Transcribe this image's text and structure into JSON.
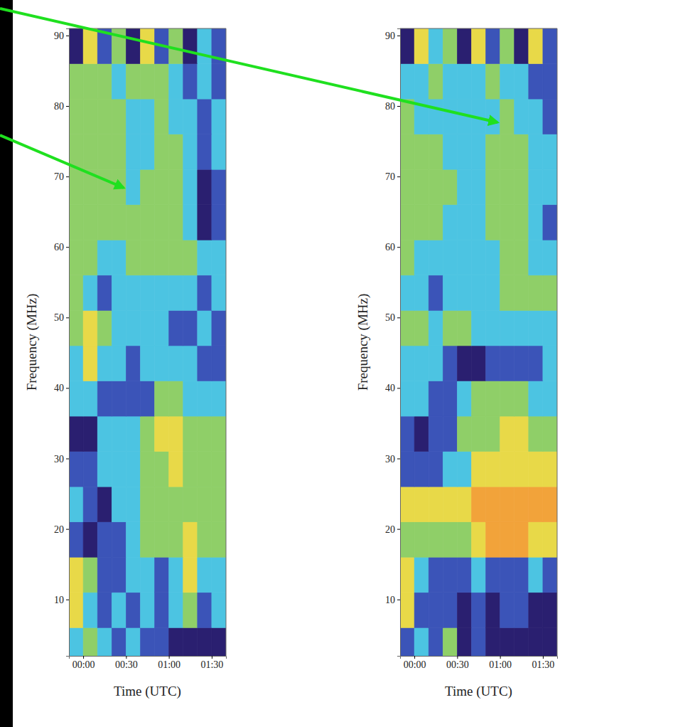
{
  "chart_data": [
    {
      "type": "heatmap",
      "xlabel": "Time (UTC)",
      "ylabel": "Frequency (MHz)",
      "xlim": [
        -10,
        100
      ],
      "ylim": [
        2,
        91
      ],
      "xticks": [
        {
          "value": 0,
          "label": "00:00"
        },
        {
          "value": 30,
          "label": "00:30"
        },
        {
          "value": 60,
          "label": "01:00"
        },
        {
          "value": 90,
          "label": "01:30"
        }
      ],
      "yticks": [
        10,
        20,
        30,
        40,
        50,
        60,
        70,
        80,
        90
      ],
      "x": [
        -10,
        0,
        10,
        20,
        30,
        40,
        50,
        60,
        70,
        80,
        90,
        100
      ],
      "y": [
        2,
        6,
        11,
        16,
        21,
        26,
        31,
        36,
        41,
        46,
        51,
        56,
        61,
        66,
        71,
        76,
        81,
        86,
        91
      ],
      "zlim": [
        0,
        5
      ],
      "colors": [
        "#2a1f70",
        "#3b54b8",
        "#4cc4e2",
        "#8fcf68",
        "#e8d948",
        "#f2a33a"
      ],
      "z": [
        [
          2,
          3,
          2,
          1,
          2,
          1,
          1,
          0,
          0,
          0,
          0
        ],
        [
          4,
          2,
          1,
          2,
          1,
          2,
          1,
          2,
          3,
          1,
          2
        ],
        [
          4,
          3,
          1,
          1,
          2,
          2,
          1,
          2,
          4,
          2,
          2
        ],
        [
          1,
          0,
          1,
          1,
          2,
          3,
          3,
          3,
          4,
          3,
          3
        ],
        [
          2,
          1,
          0,
          2,
          2,
          3,
          3,
          3,
          3,
          3,
          3
        ],
        [
          1,
          1,
          2,
          2,
          2,
          3,
          3,
          4,
          3,
          3,
          3
        ],
        [
          0,
          0,
          2,
          2,
          2,
          3,
          4,
          4,
          3,
          3,
          3
        ],
        [
          2,
          2,
          1,
          1,
          1,
          1,
          3,
          3,
          2,
          2,
          2
        ],
        [
          2,
          4,
          2,
          2,
          1,
          2,
          2,
          2,
          2,
          1,
          1
        ],
        [
          3,
          4,
          3,
          2,
          2,
          2,
          2,
          1,
          1,
          2,
          1
        ],
        [
          3,
          2,
          1,
          2,
          2,
          2,
          2,
          2,
          2,
          1,
          2
        ],
        [
          3,
          3,
          2,
          2,
          3,
          3,
          3,
          3,
          3,
          2,
          2
        ],
        [
          3,
          3,
          3,
          3,
          3,
          3,
          3,
          3,
          2,
          0,
          1
        ],
        [
          3,
          3,
          3,
          3,
          2,
          3,
          3,
          3,
          2,
          0,
          1
        ],
        [
          3,
          3,
          3,
          3,
          2,
          2,
          3,
          3,
          2,
          1,
          2
        ],
        [
          3,
          3,
          3,
          3,
          2,
          2,
          3,
          2,
          2,
          1,
          2
        ],
        [
          3,
          3,
          3,
          2,
          3,
          3,
          3,
          2,
          1,
          2,
          1
        ],
        [
          0,
          4,
          1,
          3,
          0,
          4,
          1,
          3,
          0,
          2,
          1
        ]
      ]
    },
    {
      "type": "heatmap",
      "xlabel": "Time (UTC)",
      "ylabel": "Frequency (MHz)",
      "xlim": [
        -10,
        100
      ],
      "ylim": [
        2,
        91
      ],
      "xticks": [
        {
          "value": 0,
          "label": "00:00"
        },
        {
          "value": 30,
          "label": "00:30"
        },
        {
          "value": 60,
          "label": "01:00"
        },
        {
          "value": 90,
          "label": "01:30"
        }
      ],
      "yticks": [
        10,
        20,
        30,
        40,
        50,
        60,
        70,
        80,
        90
      ],
      "x": [
        -10,
        0,
        10,
        20,
        30,
        40,
        50,
        60,
        70,
        80,
        90,
        100
      ],
      "y": [
        2,
        6,
        11,
        16,
        21,
        26,
        31,
        36,
        41,
        46,
        51,
        56,
        61,
        66,
        71,
        76,
        81,
        86,
        91
      ],
      "zlim": [
        0,
        5
      ],
      "colors": [
        "#2a1f70",
        "#3b54b8",
        "#4cc4e2",
        "#8fcf68",
        "#e8d948",
        "#f2a33a"
      ],
      "z": [
        [
          1,
          2,
          1,
          3,
          0,
          1,
          0,
          0,
          0,
          0,
          0
        ],
        [
          4,
          1,
          1,
          1,
          0,
          1,
          0,
          1,
          1,
          0,
          0
        ],
        [
          4,
          2,
          1,
          1,
          1,
          2,
          1,
          1,
          1,
          2,
          1
        ],
        [
          3,
          3,
          3,
          3,
          3,
          4,
          5,
          5,
          5,
          4,
          4
        ],
        [
          4,
          4,
          4,
          4,
          4,
          5,
          5,
          5,
          5,
          5,
          5
        ],
        [
          1,
          1,
          1,
          2,
          2,
          4,
          4,
          4,
          4,
          4,
          4
        ],
        [
          1,
          0,
          1,
          1,
          3,
          3,
          3,
          4,
          4,
          3,
          3
        ],
        [
          2,
          2,
          1,
          1,
          2,
          3,
          3,
          3,
          3,
          2,
          2
        ],
        [
          2,
          2,
          2,
          1,
          0,
          0,
          1,
          1,
          1,
          1,
          2
        ],
        [
          3,
          3,
          2,
          3,
          3,
          2,
          2,
          2,
          2,
          2,
          2
        ],
        [
          2,
          2,
          1,
          2,
          2,
          2,
          2,
          3,
          3,
          3,
          3
        ],
        [
          3,
          2,
          2,
          2,
          2,
          2,
          2,
          3,
          3,
          2,
          2
        ],
        [
          3,
          3,
          3,
          2,
          2,
          2,
          3,
          3,
          3,
          2,
          1
        ],
        [
          3,
          3,
          3,
          3,
          2,
          2,
          3,
          3,
          3,
          2,
          2
        ],
        [
          3,
          3,
          3,
          2,
          2,
          2,
          3,
          3,
          3,
          2,
          2
        ],
        [
          3,
          2,
          2,
          2,
          2,
          2,
          2,
          3,
          2,
          2,
          1
        ],
        [
          2,
          2,
          3,
          2,
          2,
          2,
          3,
          2,
          2,
          1,
          1
        ],
        [
          0,
          4,
          2,
          3,
          0,
          4,
          1,
          3,
          0,
          4,
          1
        ]
      ]
    }
  ]
}
